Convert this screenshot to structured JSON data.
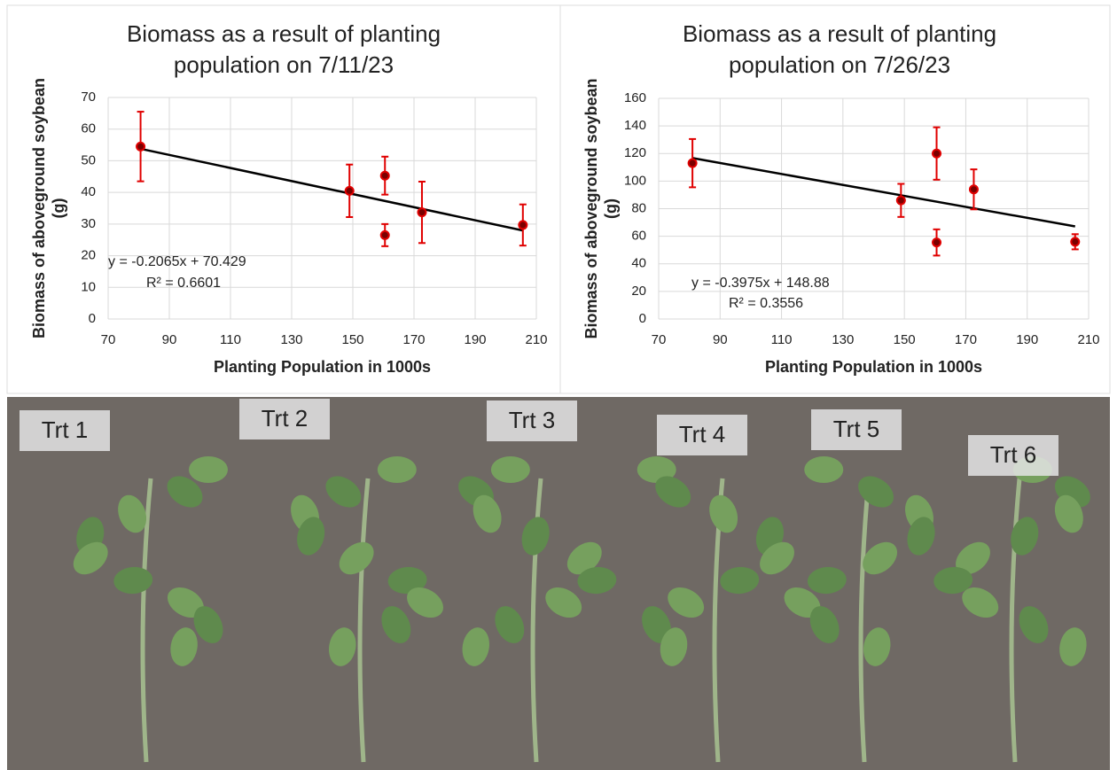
{
  "chart_data": [
    {
      "type": "scatter",
      "title": [
        "Biomass as a result of planting",
        "population on 7/11/23"
      ],
      "xlabel": "Planting Population in 1000s",
      "ylabel": [
        "Biomass of aboveground soybean",
        "(g)"
      ],
      "x": [
        80.6,
        148.9,
        160.5,
        160.5,
        172.6,
        205.6
      ],
      "values": [
        54.5,
        40.5,
        45.3,
        26.5,
        33.7,
        29.7
      ],
      "errors": [
        11,
        8.3,
        6,
        3.5,
        9.7,
        6.5
      ],
      "color": "#e00000",
      "trendline": {
        "slope": -0.2065,
        "intercept": 70.429,
        "label": "y = -0.2065x + 70.429",
        "r2_label": "R² = 0.6601",
        "color": "#000000"
      },
      "xlim": [
        70,
        210
      ],
      "xticks": [
        70,
        90,
        110,
        130,
        150,
        170,
        190,
        210
      ],
      "ylim": [
        0,
        70
      ],
      "yticks": [
        0,
        10,
        20,
        30,
        40,
        50,
        60,
        70
      ],
      "grid": true
    },
    {
      "type": "scatter",
      "title": [
        "Biomass as a result of planting",
        "population on 7/26/23"
      ],
      "xlabel": "Planting Population in 1000s",
      "ylabel": [
        "Biomass of aboveground soybean",
        "(g)"
      ],
      "x": [
        81,
        148.9,
        160.5,
        160.5,
        172.6,
        205.6
      ],
      "values": [
        113,
        86,
        120,
        55.5,
        94,
        56
      ],
      "errors": [
        17.5,
        12,
        19,
        9.5,
        14.5,
        5.5
      ],
      "color": "#e00000",
      "trendline": {
        "slope": -0.3975,
        "intercept": 148.88,
        "label": "y = -0.3975x + 148.88",
        "r2_label": "R² = 0.3556",
        "color": "#000000"
      },
      "xlim": [
        70,
        210
      ],
      "xticks": [
        70,
        90,
        110,
        130,
        150,
        170,
        190,
        210
      ],
      "ylim": [
        0,
        160
      ],
      "yticks": [
        0,
        20,
        40,
        60,
        80,
        100,
        120,
        140,
        160
      ],
      "grid": true
    }
  ],
  "photo": {
    "labels": [
      "Trt 1",
      "Trt 2",
      "Trt 3",
      "Trt 4",
      "Trt 5",
      "Trt 6"
    ]
  }
}
